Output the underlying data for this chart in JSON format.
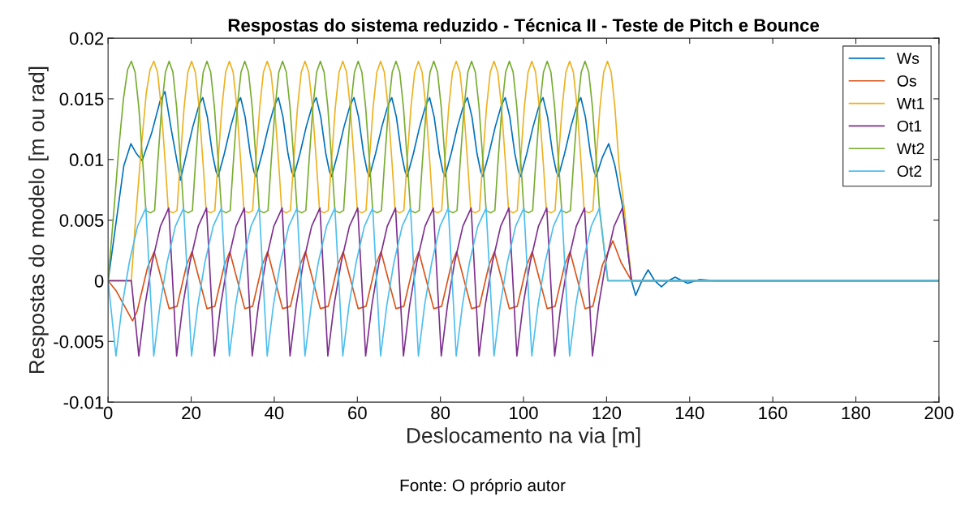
{
  "chart_data": {
    "type": "line",
    "title": "Respostas do sistema reduzido - Técnica II - Teste de Pitch e Bounce",
    "xlabel": "Deslocamento na via [m]",
    "ylabel": "Respostas do modelo [m ou rad]",
    "annotations": [
      "Fonte: O próprio autor"
    ],
    "xlim": [
      0,
      200
    ],
    "xticks": [
      0,
      20,
      40,
      60,
      80,
      100,
      120,
      140,
      160,
      180,
      200
    ],
    "ylim": [
      -0.01,
      0.02
    ],
    "yticks": [
      -0.01,
      -0.005,
      0,
      0.005,
      0.01,
      0.015,
      0.02
    ],
    "grid": false,
    "legend": "top right",
    "marker": "none",
    "line_style": "solid",
    "series": [
      {
        "name": "Ws",
        "color": "#0072bd",
        "x": [
          0,
          2.0,
          3.8,
          5.5,
          6.8,
          8.2,
          10.5,
          12.5,
          13.7,
          15.2,
          17.4,
          18.9,
          20.4,
          21.9,
          22.8,
          23.9,
          25.1,
          26.0,
          26.5,
          28.0,
          29.5,
          31.0,
          31.9,
          33.0,
          34.2,
          35.1,
          35.6,
          37.1,
          38.6,
          40.1,
          41.0,
          42.1,
          43.3,
          44.2,
          44.7,
          46.2,
          47.7,
          49.2,
          50.1,
          51.2,
          52.4,
          53.3,
          53.8,
          55.3,
          56.8,
          58.3,
          59.2,
          60.3,
          61.5,
          62.4,
          62.9,
          64.4,
          65.9,
          67.4,
          68.3,
          69.4,
          70.6,
          71.5,
          72.0,
          73.5,
          75.0,
          76.5,
          77.4,
          78.5,
          79.7,
          80.6,
          81.1,
          82.6,
          84.1,
          85.6,
          86.5,
          87.6,
          88.8,
          89.7,
          90.2,
          91.7,
          93.2,
          94.7,
          95.6,
          96.7,
          97.9,
          98.8,
          99.3,
          100.8,
          102.3,
          103.8,
          104.7,
          105.8,
          107.0,
          107.9,
          108.4,
          109.9,
          111.4,
          112.9,
          113.8,
          114.9,
          116.1,
          117.0,
          117.5,
          119.0,
          120.5,
          122.0,
          123.8,
          126.0,
          127.0,
          128.5,
          130.0,
          131.6,
          133.2,
          134.8,
          136.5,
          139.5,
          142.3,
          146.0,
          200
        ],
        "values": [
          0,
          0.005,
          0.0095,
          0.0113,
          0.0105,
          0.0099,
          0.0122,
          0.0148,
          0.0156,
          0.0125,
          0.0083,
          0.0105,
          0.0127,
          0.0145,
          0.0151,
          0.0135,
          0.0105,
          0.009,
          0.0086,
          0.0105,
          0.0127,
          0.0145,
          0.0151,
          0.0135,
          0.0105,
          0.009,
          0.0086,
          0.0105,
          0.0127,
          0.0145,
          0.0151,
          0.0135,
          0.0105,
          0.009,
          0.0086,
          0.0105,
          0.0127,
          0.0145,
          0.0151,
          0.0135,
          0.0105,
          0.009,
          0.0086,
          0.0105,
          0.0127,
          0.0145,
          0.0151,
          0.0135,
          0.0105,
          0.009,
          0.0086,
          0.0105,
          0.0127,
          0.0145,
          0.0151,
          0.0135,
          0.0105,
          0.009,
          0.0086,
          0.0105,
          0.0127,
          0.0145,
          0.0151,
          0.0135,
          0.0105,
          0.009,
          0.0086,
          0.0105,
          0.0127,
          0.0145,
          0.0151,
          0.0135,
          0.0105,
          0.009,
          0.0086,
          0.0105,
          0.0127,
          0.0145,
          0.0151,
          0.0135,
          0.0105,
          0.009,
          0.0086,
          0.0105,
          0.0127,
          0.0145,
          0.0151,
          0.0135,
          0.0105,
          0.009,
          0.0086,
          0.0105,
          0.0127,
          0.0145,
          0.0151,
          0.0135,
          0.0105,
          0.009,
          0.0086,
          0.0102,
          0.0113,
          0.0095,
          0.0062,
          0,
          -0.0012,
          0,
          0.0009,
          0,
          -0.0005,
          0,
          0.0003,
          -0.0002,
          0.0001,
          0,
          0
        ]
      },
      {
        "name": "Os",
        "color": "#d95319",
        "x": [
          0,
          1.9,
          5.9,
          7.0,
          9.5,
          11.1,
          14.7,
          16.6,
          18.9,
          20.2,
          23.8,
          25.7,
          28.0,
          29.3,
          32.9,
          34.8,
          37.1,
          38.4,
          42.0,
          43.9,
          46.2,
          47.5,
          51.1,
          53.0,
          55.3,
          56.6,
          60.2,
          62.1,
          64.4,
          65.7,
          69.3,
          71.2,
          73.5,
          74.8,
          78.4,
          80.3,
          82.6,
          83.9,
          87.5,
          89.4,
          91.7,
          93.0,
          96.6,
          98.5,
          100.8,
          102.1,
          105.7,
          107.6,
          109.9,
          111.2,
          114.8,
          116.7,
          119.0,
          121.5,
          123.5,
          126.0,
          200
        ],
        "values": [
          0,
          -0.0008,
          -0.0033,
          -0.0025,
          0.0011,
          0.0024,
          -0.0023,
          -0.0021,
          0.0013,
          0.0024,
          -0.0023,
          -0.0021,
          0.0013,
          0.0024,
          -0.0023,
          -0.0021,
          0.0013,
          0.0024,
          -0.0023,
          -0.0021,
          0.0013,
          0.0024,
          -0.0023,
          -0.0021,
          0.0013,
          0.0024,
          -0.0023,
          -0.0021,
          0.0013,
          0.0024,
          -0.0023,
          -0.0021,
          0.0013,
          0.0024,
          -0.0023,
          -0.0021,
          0.0013,
          0.0024,
          -0.0023,
          -0.0021,
          0.0013,
          0.0024,
          -0.0023,
          -0.0021,
          0.0013,
          0.0024,
          -0.0023,
          -0.0021,
          0.0013,
          0.0024,
          -0.0023,
          -0.0021,
          0.0013,
          0.0033,
          0.0015,
          0,
          0
        ]
      },
      {
        "name": "Wt1",
        "color": "#edb120",
        "x": [
          0,
          5.6,
          6.6,
          8.0,
          9.2,
          10.1,
          11.0,
          11.9,
          12.8,
          13.8,
          14.5,
          15.6,
          16.6,
          17.3,
          18.3,
          19.2,
          20.1,
          21.0,
          21.9,
          22.9,
          23.6,
          24.7,
          25.7,
          26.4,
          27.4,
          28.3,
          29.2,
          30.1,
          31.0,
          32.0,
          32.7,
          33.8,
          34.8,
          35.5,
          36.5,
          37.4,
          38.3,
          39.2,
          40.1,
          41.1,
          41.8,
          42.9,
          43.9,
          44.6,
          45.6,
          46.5,
          47.4,
          48.3,
          49.2,
          50.2,
          50.9,
          52.0,
          53.0,
          53.7,
          54.7,
          55.6,
          56.5,
          57.4,
          58.3,
          59.3,
          60.0,
          61.1,
          62.1,
          62.8,
          63.8,
          64.7,
          65.6,
          66.5,
          67.4,
          68.4,
          69.1,
          70.2,
          71.2,
          71.9,
          72.9,
          73.8,
          74.7,
          75.6,
          76.5,
          77.5,
          78.2,
          79.3,
          80.3,
          81.0,
          82.0,
          82.9,
          83.8,
          84.7,
          85.6,
          86.6,
          87.3,
          88.4,
          89.4,
          90.1,
          91.1,
          92.0,
          92.9,
          93.8,
          94.7,
          95.7,
          96.4,
          97.5,
          98.5,
          99.2,
          100.2,
          101.1,
          102.0,
          102.9,
          103.8,
          104.8,
          105.5,
          106.6,
          107.6,
          108.3,
          109.3,
          110.2,
          111.1,
          112.0,
          112.9,
          113.9,
          114.6,
          115.7,
          116.7,
          117.4,
          118.4,
          119.3,
          120.2,
          121.1,
          122.0,
          123.0,
          124.3,
          126.0,
          200
        ],
        "values": [
          0,
          0,
          0.005,
          0.011,
          0.0155,
          0.0174,
          0.0181,
          0.0172,
          0.0143,
          0.0095,
          0.0058,
          0.0056,
          0.0058,
          0.0095,
          0.0143,
          0.0172,
          0.0181,
          0.0172,
          0.0143,
          0.0095,
          0.0058,
          0.0056,
          0.0058,
          0.0095,
          0.0143,
          0.0172,
          0.0181,
          0.0172,
          0.0143,
          0.0095,
          0.0058,
          0.0056,
          0.0058,
          0.0095,
          0.0143,
          0.0172,
          0.0181,
          0.0172,
          0.0143,
          0.0095,
          0.0058,
          0.0056,
          0.0058,
          0.0095,
          0.0143,
          0.0172,
          0.0181,
          0.0172,
          0.0143,
          0.0095,
          0.0058,
          0.0056,
          0.0058,
          0.0095,
          0.0143,
          0.0172,
          0.0181,
          0.0172,
          0.0143,
          0.0095,
          0.0058,
          0.0056,
          0.0058,
          0.0095,
          0.0143,
          0.0172,
          0.0181,
          0.0172,
          0.0143,
          0.0095,
          0.0058,
          0.0056,
          0.0058,
          0.0095,
          0.0143,
          0.0172,
          0.0181,
          0.0172,
          0.0143,
          0.0095,
          0.0058,
          0.0056,
          0.0058,
          0.0095,
          0.0143,
          0.0172,
          0.0181,
          0.0172,
          0.0143,
          0.0095,
          0.0058,
          0.0056,
          0.0058,
          0.0095,
          0.0143,
          0.0172,
          0.0181,
          0.0172,
          0.0143,
          0.0095,
          0.0058,
          0.0056,
          0.0058,
          0.0095,
          0.0143,
          0.0172,
          0.0181,
          0.0172,
          0.0143,
          0.0095,
          0.0058,
          0.0056,
          0.0058,
          0.0095,
          0.0143,
          0.0172,
          0.0181,
          0.0172,
          0.0143,
          0.0095,
          0.0058,
          0.0056,
          0.0058,
          0.0095,
          0.0143,
          0.0172,
          0.0181,
          0.0172,
          0.0143,
          0.0095,
          0.0058,
          0,
          0
        ]
      },
      {
        "name": "Ot1",
        "color": "#7e2f8e",
        "x": [
          0,
          5.6,
          7.4,
          8.9,
          10.6,
          12.6,
          14.6,
          16.5,
          18.0,
          19.7,
          21.7,
          23.7,
          25.6,
          27.1,
          28.8,
          30.8,
          32.8,
          34.7,
          36.2,
          37.9,
          39.9,
          41.9,
          43.8,
          45.3,
          47.0,
          49.0,
          51.0,
          52.9,
          54.4,
          56.1,
          58.1,
          60.1,
          62.0,
          63.5,
          65.2,
          67.2,
          69.2,
          71.1,
          72.6,
          74.3,
          76.3,
          78.3,
          80.2,
          81.7,
          83.4,
          85.4,
          87.4,
          89.3,
          90.8,
          92.5,
          94.5,
          96.5,
          98.4,
          99.9,
          101.6,
          103.6,
          105.6,
          107.5,
          109.0,
          110.7,
          112.7,
          114.7,
          116.6,
          118.1,
          119.8,
          121.8,
          123.8,
          126.0,
          200
        ],
        "values": [
          0,
          0,
          -0.0062,
          -0.002,
          0.0015,
          0.0045,
          0.006,
          -0.0062,
          -0.002,
          0.0015,
          0.0045,
          0.006,
          -0.0062,
          -0.002,
          0.0015,
          0.0045,
          0.006,
          -0.0062,
          -0.002,
          0.0015,
          0.0045,
          0.006,
          -0.0062,
          -0.002,
          0.0015,
          0.0045,
          0.006,
          -0.0062,
          -0.002,
          0.0015,
          0.0045,
          0.006,
          -0.0062,
          -0.002,
          0.0015,
          0.0045,
          0.006,
          -0.0062,
          -0.002,
          0.0015,
          0.0045,
          0.006,
          -0.0062,
          -0.002,
          0.0015,
          0.0045,
          0.006,
          -0.0062,
          -0.002,
          0.0015,
          0.0045,
          0.006,
          -0.0062,
          -0.002,
          0.0015,
          0.0045,
          0.006,
          -0.0062,
          -0.002,
          0.0015,
          0.0045,
          0.006,
          -0.0062,
          -0.002,
          0.0015,
          0.0045,
          0.006,
          0,
          0
        ]
      },
      {
        "name": "Wt2",
        "color": "#77ac30",
        "x": [
          0,
          1.5,
          2.6,
          3.7,
          4.7,
          5.6,
          6.5,
          7.4,
          8.4,
          9.1,
          10.2,
          11.2,
          11.9,
          12.9,
          13.8,
          14.7,
          15.6,
          16.5,
          17.5,
          18.2,
          19.3,
          20.3,
          21.0,
          22.0,
          22.9,
          23.8,
          24.7,
          25.6,
          26.6,
          27.3,
          28.4,
          29.4,
          30.1,
          31.1,
          32.0,
          32.9,
          33.8,
          34.7,
          35.7,
          36.4,
          37.5,
          38.5,
          39.2,
          40.2,
          41.1,
          42.0,
          42.9,
          43.8,
          44.8,
          45.5,
          46.6,
          47.6,
          48.3,
          49.3,
          50.2,
          51.1,
          52.0,
          52.9,
          53.9,
          54.6,
          55.7,
          56.7,
          57.4,
          58.4,
          59.3,
          60.2,
          61.1,
          62.0,
          63.0,
          63.7,
          64.8,
          65.8,
          66.5,
          67.5,
          68.4,
          69.3,
          70.2,
          71.1,
          72.1,
          72.8,
          73.9,
          74.9,
          75.6,
          76.6,
          77.5,
          78.4,
          79.3,
          80.2,
          81.2,
          81.9,
          83.0,
          84.0,
          84.7,
          85.7,
          86.6,
          87.5,
          88.4,
          89.3,
          90.3,
          91.0,
          92.1,
          93.1,
          93.8,
          94.8,
          95.7,
          96.6,
          97.5,
          98.4,
          99.4,
          100.1,
          101.2,
          102.2,
          102.9,
          103.9,
          104.8,
          105.7,
          106.6,
          107.5,
          108.5,
          109.2,
          110.3,
          111.3,
          112.0,
          113.0,
          113.9,
          114.8,
          115.7,
          116.6,
          117.6,
          118.3,
          120.3,
          200
        ],
        "values": [
          0,
          0.0062,
          0.011,
          0.015,
          0.0174,
          0.0181,
          0.0172,
          0.0143,
          0.0095,
          0.0058,
          0.0056,
          0.0058,
          0.0095,
          0.0143,
          0.0172,
          0.0181,
          0.0172,
          0.0143,
          0.0095,
          0.0058,
          0.0056,
          0.0058,
          0.0095,
          0.0143,
          0.0172,
          0.0181,
          0.0172,
          0.0143,
          0.0095,
          0.0058,
          0.0056,
          0.0058,
          0.0095,
          0.0143,
          0.0172,
          0.0181,
          0.0172,
          0.0143,
          0.0095,
          0.0058,
          0.0056,
          0.0058,
          0.0095,
          0.0143,
          0.0172,
          0.0181,
          0.0172,
          0.0143,
          0.0095,
          0.0058,
          0.0056,
          0.0058,
          0.0095,
          0.0143,
          0.0172,
          0.0181,
          0.0172,
          0.0143,
          0.0095,
          0.0058,
          0.0056,
          0.0058,
          0.0095,
          0.0143,
          0.0172,
          0.0181,
          0.0172,
          0.0143,
          0.0095,
          0.0058,
          0.0056,
          0.0058,
          0.0095,
          0.0143,
          0.0172,
          0.0181,
          0.0172,
          0.0143,
          0.0095,
          0.0058,
          0.0056,
          0.0058,
          0.0095,
          0.0143,
          0.0172,
          0.0181,
          0.0172,
          0.0143,
          0.0095,
          0.0058,
          0.0056,
          0.0058,
          0.0095,
          0.0143,
          0.0172,
          0.0181,
          0.0172,
          0.0143,
          0.0095,
          0.0058,
          0.0056,
          0.0058,
          0.0095,
          0.0143,
          0.0172,
          0.0181,
          0.0172,
          0.0143,
          0.0095,
          0.0058,
          0.0056,
          0.0058,
          0.0095,
          0.0143,
          0.0172,
          0.0181,
          0.0172,
          0.0143,
          0.0095,
          0.0058,
          0.0056,
          0.0058,
          0.0095,
          0.0143,
          0.0172,
          0.0181,
          0.0172,
          0.0143,
          0.0095,
          0.0058,
          0,
          0
        ]
      },
      {
        "name": "Ot2",
        "color": "#4dbeee",
        "x": [
          0,
          1.9,
          3.4,
          5.1,
          7.1,
          9.1,
          11.0,
          12.5,
          14.2,
          16.2,
          18.2,
          20.1,
          21.6,
          23.3,
          25.3,
          27.3,
          29.2,
          30.7,
          32.4,
          34.4,
          36.4,
          38.3,
          39.8,
          41.5,
          43.5,
          45.5,
          47.4,
          48.9,
          50.6,
          52.6,
          54.6,
          56.5,
          58.0,
          59.7,
          61.7,
          63.7,
          65.6,
          67.1,
          68.8,
          70.8,
          72.8,
          74.7,
          76.2,
          77.9,
          79.9,
          81.9,
          83.8,
          85.3,
          87.0,
          89.0,
          91.0,
          92.9,
          94.4,
          96.1,
          98.1,
          100.1,
          102.0,
          103.5,
          105.2,
          107.2,
          109.2,
          111.1,
          112.6,
          114.3,
          116.3,
          118.3,
          120.3,
          200
        ],
        "values": [
          0,
          -0.0062,
          -0.002,
          0.0015,
          0.0045,
          0.006,
          -0.0062,
          -0.002,
          0.0015,
          0.0045,
          0.006,
          -0.0062,
          -0.002,
          0.0015,
          0.0045,
          0.006,
          -0.0062,
          -0.002,
          0.0015,
          0.0045,
          0.006,
          -0.0062,
          -0.002,
          0.0015,
          0.0045,
          0.006,
          -0.0062,
          -0.002,
          0.0015,
          0.0045,
          0.006,
          -0.0062,
          -0.002,
          0.0015,
          0.0045,
          0.006,
          -0.0062,
          -0.002,
          0.0015,
          0.0045,
          0.006,
          -0.0062,
          -0.002,
          0.0015,
          0.0045,
          0.006,
          -0.0062,
          -0.002,
          0.0015,
          0.0045,
          0.006,
          -0.0062,
          -0.002,
          0.0015,
          0.0045,
          0.006,
          -0.0062,
          -0.002,
          0.0015,
          0.0045,
          0.006,
          -0.0062,
          -0.002,
          0.0015,
          0.0045,
          0.006,
          0,
          0
        ]
      }
    ]
  }
}
